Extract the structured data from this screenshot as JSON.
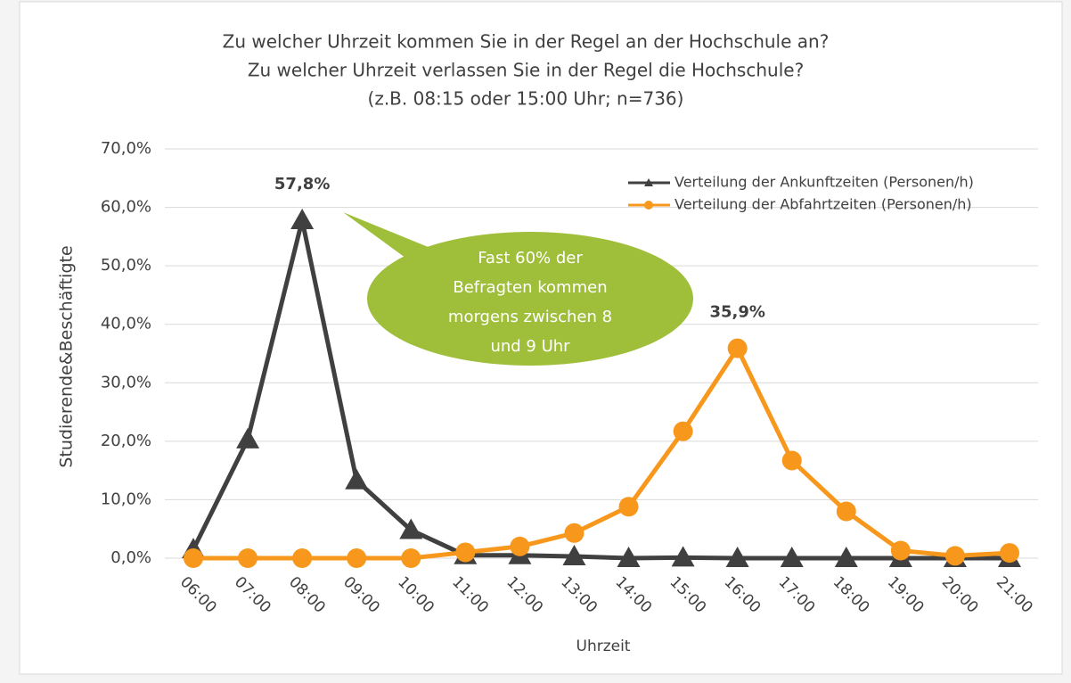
{
  "chart_data": {
    "type": "line",
    "title": [
      "Zu welcher Uhrzeit kommen Sie in der Regel an der Hochschule an?",
      "Zu welcher Uhrzeit verlassen Sie in der Regel die Hochschule?",
      "(z.B. 08:15 oder 15:00 Uhr; n=736)"
    ],
    "x_label": "Uhrzeit",
    "y_label": "Studierende&Beschäftigte",
    "categories": [
      "06:00",
      "07:00",
      "08:00",
      "09:00",
      "10:00",
      "11:00",
      "12:00",
      "13:00",
      "14:00",
      "15:00",
      "16:00",
      "17:00",
      "18:00",
      "19:00",
      "20:00",
      "21:00"
    ],
    "series": [
      {
        "name": "Verteilung der Ankunftzeiten (Personen/h)",
        "color": "#404040",
        "marker": "triangle",
        "values": [
          1.5,
          20.3,
          57.8,
          13.3,
          4.8,
          0.5,
          0.5,
          0.3,
          0.0,
          0.1,
          0.0,
          0.0,
          0.0,
          0.0,
          0.0,
          0.0
        ],
        "value_labels": [
          null,
          null,
          "57,8%",
          null,
          null,
          null,
          null,
          null,
          null,
          null,
          null,
          null,
          null,
          null,
          null,
          null
        ]
      },
      {
        "name": "Verteilung der Abfahrtzeiten (Personen/h)",
        "color": "#f7981d",
        "marker": "circle",
        "values": [
          0.0,
          0.0,
          0.0,
          0.0,
          0.0,
          1.0,
          2.0,
          4.3,
          8.8,
          21.7,
          35.9,
          16.7,
          8.0,
          1.3,
          0.4,
          0.9
        ],
        "value_labels": [
          null,
          null,
          null,
          null,
          null,
          null,
          null,
          null,
          null,
          null,
          "35,9%",
          null,
          null,
          null,
          null,
          null
        ]
      }
    ],
    "ylim": [
      0,
      70
    ],
    "yticks": [
      {
        "value": 0,
        "label": "0,0%"
      },
      {
        "value": 10,
        "label": "10,0%"
      },
      {
        "value": 20,
        "label": "20,0%"
      },
      {
        "value": 30,
        "label": "30,0%"
      },
      {
        "value": 40,
        "label": "40,0%"
      },
      {
        "value": 50,
        "label": "50,0%"
      },
      {
        "value": 60,
        "label": "60,0%"
      },
      {
        "value": 70,
        "label": "70,0%"
      }
    ],
    "grid": true,
    "legend": "top-right",
    "annotation": [
      "Fast 60% der",
      "Befragten kommen",
      "morgens zwischen 8",
      "und 9 Uhr"
    ],
    "annotation_color": "#9fbf3b"
  }
}
